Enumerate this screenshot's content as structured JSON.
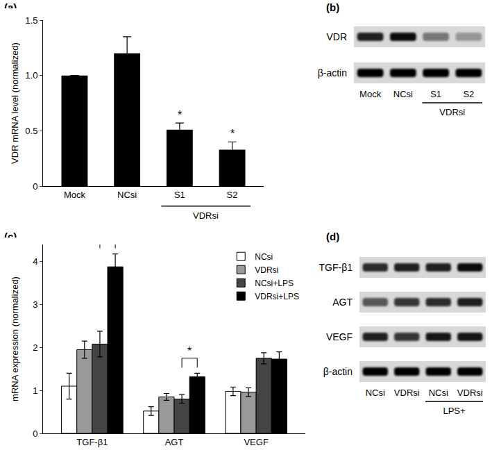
{
  "chart_data": [
    {
      "panel": "(a)",
      "type": "bar",
      "categories": [
        "Mock",
        "NCsi",
        "S1",
        "S2"
      ],
      "values": [
        1.0,
        1.2,
        0.51,
        0.33
      ],
      "errors": [
        null,
        0.15,
        0.06,
        0.07
      ],
      "color": "#000000",
      "ylim": [
        0,
        1.5
      ],
      "yticks": [
        0,
        0.5,
        {
          "value": 1,
          "label": "1.0"
        },
        1.5
      ],
      "y_label": "VDR mRNA level (normalized)",
      "groups": [
        {
          "label": "VDRsi",
          "categories": [
            "S1",
            "S2"
          ]
        }
      ],
      "annotations": [
        {
          "category": "S1",
          "text": "*"
        },
        {
          "category": "S2",
          "text": "*"
        }
      ]
    },
    {
      "panel": "(c)",
      "type": "bar",
      "categories": [
        "TGF-β1",
        "AGT",
        "VEGF"
      ],
      "series": [
        {
          "name": "NCsi",
          "color": "#ffffff",
          "values": [
            1.1,
            0.52,
            0.98
          ],
          "errors": [
            0.3,
            0.1,
            0.1
          ]
        },
        {
          "name": "VDRsi",
          "color": "#999999",
          "values": [
            1.95,
            0.85,
            0.96
          ],
          "errors": [
            0.2,
            0.08,
            0.1
          ]
        },
        {
          "name": "NCsi+LPS",
          "color": "#444444",
          "values": [
            2.08,
            0.8,
            1.75
          ],
          "errors": [
            0.3,
            0.1,
            0.13
          ]
        },
        {
          "name": "VDRsi+LPS",
          "color": "#000000",
          "values": [
            3.88,
            1.32,
            1.73
          ],
          "errors": [
            0.3,
            0.08,
            0.17
          ]
        }
      ],
      "ylim": [
        0,
        4.4
      ],
      "yticks": [
        0,
        1,
        2,
        3,
        4
      ],
      "y_label": "mRNA expression (normalized)",
      "legend": "top-right",
      "significance": [
        {
          "category": "TGF-β1",
          "between": [
            "NCsi+LPS",
            "VDRsi+LPS"
          ],
          "text": "*"
        },
        {
          "category": "AGT",
          "between": [
            "NCsi+LPS",
            "VDRsi+LPS"
          ],
          "text": "*"
        }
      ]
    }
  ],
  "blots": [
    {
      "panel": "(b)",
      "lanes": [
        "Mock",
        "NCsi",
        "S1",
        "S2"
      ],
      "groups": [
        {
          "label": "VDRsi",
          "lanes": [
            2,
            3
          ]
        }
      ],
      "rows": [
        {
          "label": "VDR",
          "intensity": [
            0.85,
            0.95,
            0.45,
            0.3
          ]
        },
        {
          "label": "β-actin",
          "intensity": [
            1,
            1,
            1,
            1
          ]
        }
      ]
    },
    {
      "panel": "(d)",
      "lanes": [
        "NCsi",
        "VDRsi",
        "NCsi",
        "VDRsi"
      ],
      "groups": [
        {
          "label": "LPS+",
          "lanes": [
            2,
            3
          ]
        }
      ],
      "rows": [
        {
          "label": "TGF-β1",
          "intensity": [
            0.8,
            0.85,
            0.85,
            0.95
          ]
        },
        {
          "label": "AGT",
          "intensity": [
            0.6,
            0.75,
            0.8,
            0.85
          ]
        },
        {
          "label": "VEGF",
          "intensity": [
            0.85,
            0.75,
            0.9,
            0.9
          ]
        },
        {
          "label": "β-actin",
          "intensity": [
            1,
            1,
            1,
            1
          ]
        }
      ]
    }
  ]
}
